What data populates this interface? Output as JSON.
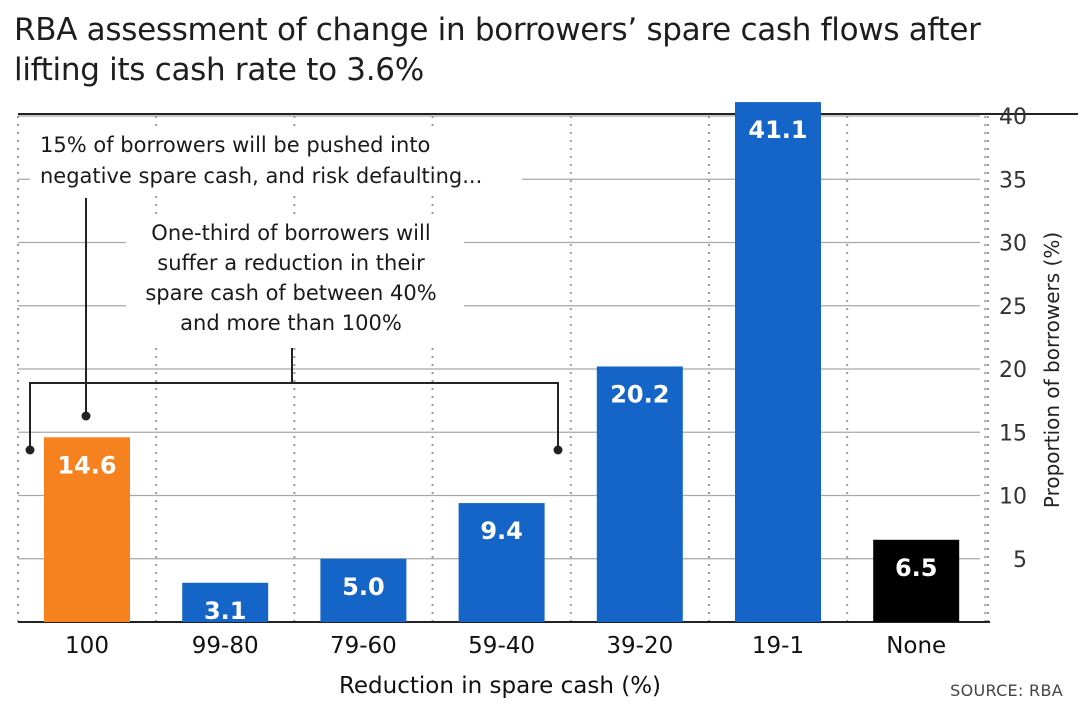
{
  "chart_data": {
    "type": "bar",
    "title": "RBA assessment of change in borrowers’ spare cash flows after lifting its cash rate to 3.6%",
    "xlabel": "Reduction in spare cash (%)",
    "ylabel": "Proportion of borrowers (%)",
    "categories": [
      "100",
      "99-80",
      "79-60",
      "59-40",
      "39-20",
      "19-1",
      "None"
    ],
    "values": [
      14.6,
      3.1,
      5.0,
      9.4,
      20.2,
      41.1,
      6.5
    ],
    "value_labels": [
      "14.6",
      "3.1",
      "5.0",
      "9.4",
      "20.2",
      "41.1",
      "6.5"
    ],
    "bar_colors": [
      "#F5821F",
      "#1565C8",
      "#1565C8",
      "#1565C8",
      "#1565C8",
      "#1565C8",
      "#000000"
    ],
    "ylim": [
      0,
      40
    ],
    "yticks": [
      5,
      10,
      15,
      20,
      25,
      30,
      35,
      40
    ],
    "axis_side": "right",
    "grid": true,
    "annotations": {
      "negative": [
        "15% of borrowers will be pushed into",
        "negative spare cash, and risk defaulting..."
      ],
      "reduction": [
        "One-third of borrowers will",
        "suffer a reduction in their",
        "spare cash of between 40%",
        "and more than 100%"
      ]
    },
    "source": "SOURCE: RBA"
  }
}
